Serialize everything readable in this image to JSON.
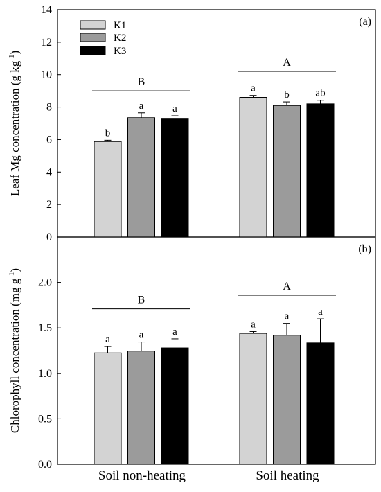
{
  "chart_data": [
    {
      "type": "bar",
      "panel_label": "(a)",
      "ylabel_main": "Leaf Mg concentration",
      "ylabel_unit": "(g kg",
      "ylabel_unit_sup": "-1",
      "ylabel_unit_close": ")",
      "categories": [
        "Soil non-heating",
        "Soil heating"
      ],
      "series": [
        {
          "name": "K1",
          "color": "#d3d3d3",
          "values": [
            5.88,
            8.6
          ],
          "errors": [
            0.08,
            0.12
          ],
          "letters": [
            "b",
            "a"
          ]
        },
        {
          "name": "K2",
          "color": "#9b9b9b",
          "values": [
            7.35,
            8.1
          ],
          "errors": [
            0.3,
            0.22
          ],
          "letters": [
            "a",
            "b"
          ]
        },
        {
          "name": "K3",
          "color": "#000000",
          "values": [
            7.27,
            8.2
          ],
          "errors": [
            0.2,
            0.22
          ],
          "letters": [
            "a",
            "ab"
          ]
        }
      ],
      "group_letters": [
        "B",
        "A"
      ],
      "group_letter_levels": [
        9.0,
        10.2
      ],
      "ylim": [
        0,
        14
      ],
      "yticks": [
        "0",
        "2",
        "4",
        "6",
        "8",
        "10",
        "12",
        "14"
      ],
      "ytick_values": [
        0,
        2,
        4,
        6,
        8,
        10,
        12,
        14
      ],
      "legend_position": "top-left",
      "grid": false
    },
    {
      "type": "bar",
      "panel_label": "(b)",
      "ylabel_main": "Chlorophyll concentration",
      "ylabel_unit": "(mg g",
      "ylabel_unit_sup": "-1",
      "ylabel_unit_close": ")",
      "categories": [
        "Soil non-heating",
        "Soil heating"
      ],
      "series": [
        {
          "name": "K1",
          "color": "#d3d3d3",
          "values": [
            1.225,
            1.44
          ],
          "errors": [
            0.07,
            0.02
          ],
          "letters": [
            "a",
            "a"
          ]
        },
        {
          "name": "K2",
          "color": "#9b9b9b",
          "values": [
            1.245,
            1.42
          ],
          "errors": [
            0.1,
            0.13
          ],
          "letters": [
            "a",
            "a"
          ]
        },
        {
          "name": "K3",
          "color": "#000000",
          "values": [
            1.28,
            1.335
          ],
          "errors": [
            0.1,
            0.265
          ],
          "letters": [
            "a",
            "a"
          ]
        }
      ],
      "group_letters": [
        "B",
        "A"
      ],
      "group_letter_levels": [
        1.71,
        1.86
      ],
      "ylim": [
        0,
        2.5
      ],
      "yticks": [
        "0.0",
        "0.5",
        "1.0",
        "1.5",
        "2.0"
      ],
      "ytick_values": [
        0,
        0.5,
        1.0,
        1.5,
        2.0
      ],
      "grid": false
    }
  ]
}
